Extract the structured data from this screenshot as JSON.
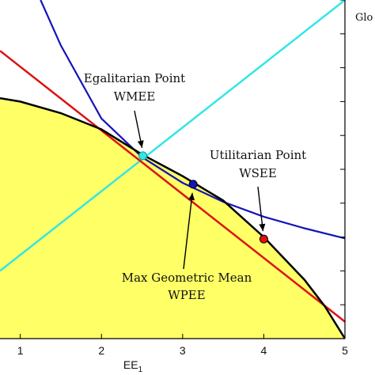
{
  "chart_data": {
    "type": "line",
    "title": "",
    "xlabel": "EE",
    "xlabel_subscript": "1",
    "ylabel": "",
    "xlim": [
      0.75,
      5.0
    ],
    "ylim": [
      0.0,
      5.0
    ],
    "x_ticks": [
      1,
      2,
      3,
      4,
      5
    ],
    "x_tick_labels": [
      "1",
      "2",
      "3",
      "4",
      "5"
    ],
    "grid": false,
    "legend_text": "Glo",
    "colors": {
      "region_fill": "#ffff66",
      "frontier": "#000000",
      "egalitarian_line": "#33e6e6",
      "geometric_curve": "#1414b8",
      "utilitarian_line": "#dd1111",
      "points_fill_geometric": "#1414b8"
    },
    "series": [
      {
        "role": "frontier",
        "x": [
          0.75,
          1.0,
          1.5,
          2.0,
          2.5,
          3.0,
          3.5,
          4.0,
          4.5,
          4.75,
          5.0
        ],
        "y": [
          3.55,
          3.5,
          3.33,
          3.09,
          2.72,
          2.4,
          2.04,
          1.5,
          0.87,
          0.48,
          0.0
        ]
      },
      {
        "role": "egalitarian_line",
        "x": [
          0.75,
          5.0
        ],
        "y": [
          1.0,
          5.0
        ]
      },
      {
        "role": "utilitarian_line",
        "x": [
          0.75,
          5.0
        ],
        "y": [
          4.25,
          0.25
        ]
      },
      {
        "role": "geometric_curve",
        "x": [
          1.25,
          1.5,
          2.0,
          2.5,
          3.0,
          3.5,
          4.0,
          4.5,
          5.0
        ],
        "y": [
          5.0,
          4.33,
          3.25,
          2.68,
          2.3,
          2.02,
          1.8,
          1.63,
          1.48
        ]
      }
    ],
    "points": [
      {
        "name": "WMEE",
        "x": 2.51,
        "y": 2.7,
        "color": "#33e6e6"
      },
      {
        "name": "WPEE",
        "x": 3.13,
        "y": 2.28,
        "color": "#1414b8"
      },
      {
        "name": "WSEE",
        "x": 4.0,
        "y": 1.47,
        "color": "#dd1111"
      }
    ],
    "annotations": [
      {
        "line1": "Egalitarian Point",
        "line2": "WMEE"
      },
      {
        "line1": "Utilitarian Point",
        "line2": "WSEE"
      },
      {
        "line1": "Max Geometric Mean",
        "line2": "WPEE"
      }
    ]
  }
}
